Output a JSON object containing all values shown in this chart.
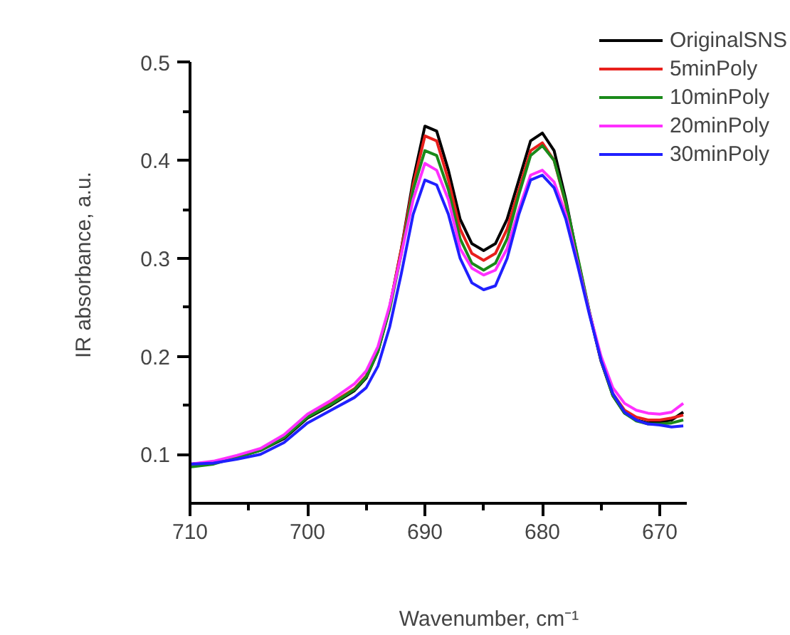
{
  "chart_data": {
    "type": "line",
    "xlabel": "Wavenumber, cm⁻¹",
    "ylabel": "IR absorbance, a.u.",
    "x": [
      710,
      708,
      706,
      704,
      702,
      700,
      698,
      696,
      695,
      694,
      693,
      692,
      691,
      690,
      689,
      688,
      687,
      686,
      685,
      684,
      683,
      682,
      681,
      680,
      679,
      678,
      677,
      676,
      675,
      674,
      673,
      672,
      671,
      670,
      669,
      668
    ],
    "series": [
      {
        "name": "OriginalSNS",
        "color": "#000000",
        "values": [
          0.09,
          0.092,
          0.097,
          0.104,
          0.116,
          0.137,
          0.15,
          0.165,
          0.178,
          0.205,
          0.25,
          0.31,
          0.38,
          0.435,
          0.43,
          0.39,
          0.34,
          0.315,
          0.308,
          0.315,
          0.34,
          0.38,
          0.42,
          0.428,
          0.41,
          0.36,
          0.3,
          0.245,
          0.195,
          0.16,
          0.142,
          0.135,
          0.132,
          0.133,
          0.135,
          0.143
        ]
      },
      {
        "name": "5minPoly",
        "color": "#e8201c",
        "values": [
          null,
          null,
          null,
          null,
          null,
          0.139,
          0.152,
          0.167,
          0.18,
          0.207,
          0.25,
          0.31,
          0.375,
          0.425,
          0.42,
          0.38,
          0.33,
          0.305,
          0.298,
          0.305,
          0.33,
          0.37,
          0.41,
          0.418,
          0.4,
          0.355,
          0.3,
          0.245,
          0.196,
          0.162,
          0.145,
          0.138,
          0.135,
          0.135,
          0.137,
          0.14
        ]
      },
      {
        "name": "10minPoly",
        "color": "#1a8a1a",
        "values": [
          0.087,
          0.09,
          0.097,
          0.104,
          0.117,
          0.138,
          0.151,
          0.166,
          0.179,
          0.205,
          0.248,
          0.305,
          0.37,
          0.41,
          0.405,
          0.37,
          0.32,
          0.295,
          0.288,
          0.295,
          0.32,
          0.365,
          0.405,
          0.415,
          0.4,
          0.357,
          0.302,
          0.246,
          0.196,
          0.16,
          0.142,
          0.134,
          0.131,
          0.131,
          0.132,
          0.135
        ]
      },
      {
        "name": "20minPoly",
        "color": "#ff30ff",
        "values": [
          0.09,
          0.093,
          0.099,
          0.106,
          0.12,
          0.141,
          0.155,
          0.172,
          0.185,
          0.21,
          0.252,
          0.305,
          0.36,
          0.397,
          0.39,
          0.36,
          0.31,
          0.29,
          0.283,
          0.288,
          0.31,
          0.35,
          0.385,
          0.39,
          0.378,
          0.345,
          0.295,
          0.245,
          0.2,
          0.168,
          0.152,
          0.145,
          0.142,
          0.141,
          0.143,
          0.152
        ]
      },
      {
        "name": "30minPoly",
        "color": "#2020ff",
        "values": [
          0.09,
          0.091,
          0.095,
          0.1,
          0.112,
          0.132,
          0.145,
          0.158,
          0.168,
          0.19,
          0.23,
          0.285,
          0.345,
          0.38,
          0.375,
          0.345,
          0.3,
          0.275,
          0.268,
          0.272,
          0.3,
          0.345,
          0.38,
          0.385,
          0.372,
          0.34,
          0.293,
          0.243,
          0.196,
          0.162,
          0.143,
          0.135,
          0.131,
          0.13,
          0.128,
          0.129
        ]
      }
    ],
    "xlim": [
      710,
      667.7
    ],
    "ylim": [
      0.05,
      0.5
    ],
    "xticks": [
      710,
      {
        "value": 705,
        "label": null
      },
      700,
      {
        "value": 695,
        "label": null
      },
      690,
      {
        "value": 685,
        "label": null
      },
      680,
      {
        "value": 675,
        "label": null
      },
      670
    ],
    "yticks": [
      0.1,
      {
        "value": 0.15,
        "label": null
      },
      0.2,
      {
        "value": 0.25,
        "label": null
      },
      0.3,
      {
        "value": 0.35,
        "label": null
      },
      0.4,
      {
        "value": 0.45,
        "label": null
      },
      0.5
    ],
    "grid": false,
    "legend": "top right",
    "marker": "none",
    "line_style": "solid"
  }
}
